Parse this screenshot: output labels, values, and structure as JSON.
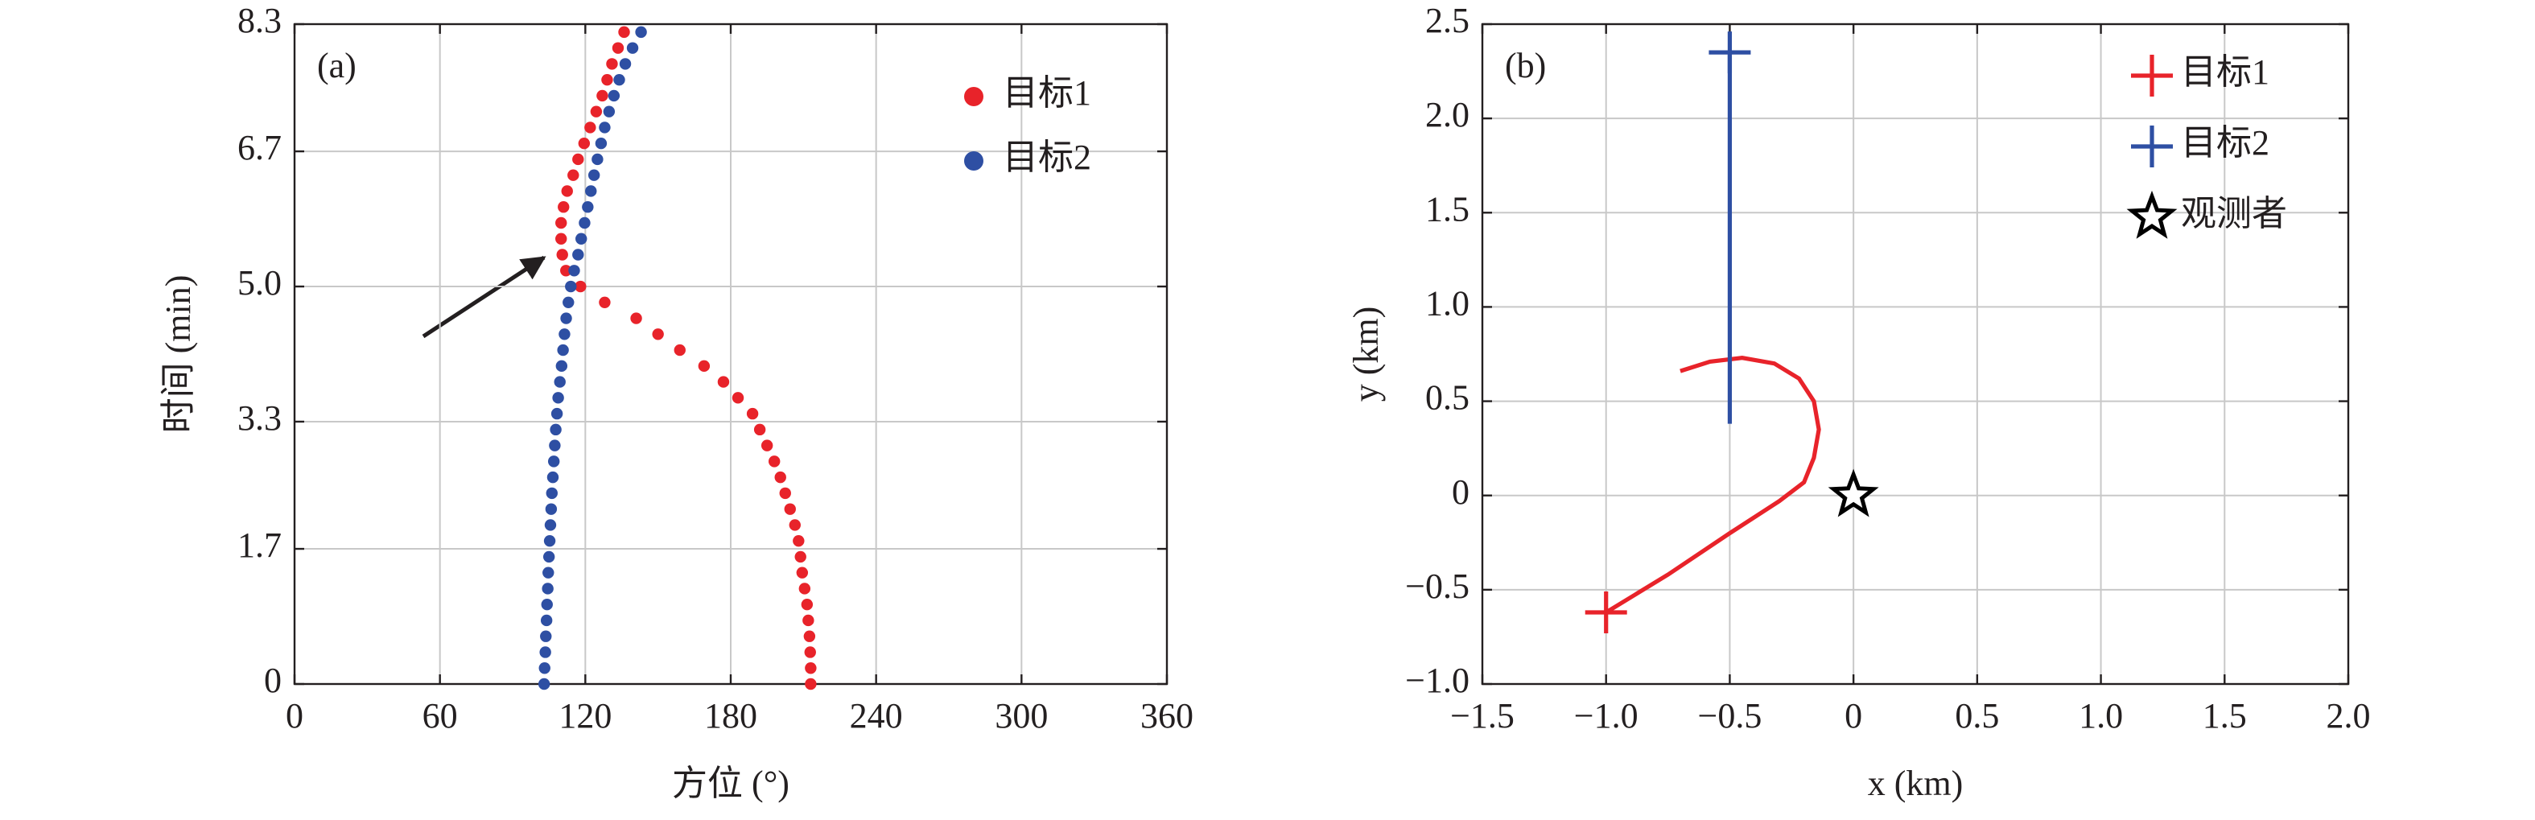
{
  "chart_data": [
    {
      "type": "scatter",
      "panel_label": "(a)",
      "xlabel": "方位 (°)",
      "ylabel": "时间 (min)",
      "xlim": [
        0,
        360
      ],
      "xticks": [
        0,
        60,
        120,
        180,
        240,
        300,
        360
      ],
      "ylim": [
        0,
        8.3
      ],
      "yticks": [
        0,
        1.7,
        3.3,
        {
          "value": 5,
          "label": "5.0"
        },
        6.7,
        8.3
      ],
      "grid": true,
      "legend": "upper right",
      "series": [
        {
          "name": "目标1",
          "color": "#e8232a",
          "x": [
            213,
            213,
            212.8,
            212.5,
            212,
            211.5,
            210.5,
            209.5,
            208.8,
            208,
            206.5,
            204.5,
            202.5,
            200.5,
            198,
            195,
            192,
            189,
            183,
            177,
            169,
            159,
            150,
            141,
            128,
            118,
            112,
            110.5,
            110,
            110,
            111,
            112.5,
            115,
            117,
            119.5,
            122,
            124.5,
            127,
            129,
            131,
            133.5,
            136
          ],
          "values": [
            0,
            0.2,
            0.4,
            0.6,
            0.8,
            1.0,
            1.2,
            1.4,
            1.6,
            1.8,
            2.0,
            2.2,
            2.4,
            2.6,
            2.8,
            3.0,
            3.2,
            3.4,
            3.6,
            3.8,
            4.0,
            4.2,
            4.4,
            4.6,
            4.8,
            5.0,
            5.2,
            5.4,
            5.6,
            5.8,
            6.0,
            6.2,
            6.4,
            6.6,
            6.8,
            7.0,
            7.2,
            7.4,
            7.6,
            7.8,
            8.0,
            8.2
          ]
        },
        {
          "name": "目标2",
          "color": "#2e4fa3",
          "x": [
            103,
            103.2,
            103.5,
            103.7,
            104,
            104.2,
            104.5,
            104.7,
            105,
            105.3,
            105.6,
            105.9,
            106.2,
            106.6,
            107,
            107.4,
            107.8,
            108.3,
            108.8,
            109.5,
            110.2,
            110.8,
            111.4,
            112.1,
            113,
            114,
            115.4,
            117,
            118.3,
            119.7,
            121,
            122.3,
            123.6,
            125,
            126.5,
            128,
            129.8,
            131.8,
            134,
            136.5,
            139.5,
            143
          ],
          "values": [
            0,
            0.2,
            0.4,
            0.6,
            0.8,
            1.0,
            1.2,
            1.4,
            1.6,
            1.8,
            2.0,
            2.2,
            2.4,
            2.6,
            2.8,
            3.0,
            3.2,
            3.4,
            3.6,
            3.8,
            4.0,
            4.2,
            4.4,
            4.6,
            4.8,
            5.0,
            5.2,
            5.4,
            5.6,
            5.8,
            6.0,
            6.2,
            6.4,
            6.6,
            6.8,
            7.0,
            7.2,
            7.4,
            7.6,
            7.8,
            8.0,
            8.2
          ]
        }
      ]
    },
    {
      "type": "line",
      "panel_label": "(b)",
      "xlabel": "x (km)",
      "ylabel": "y (km)",
      "xlim": [
        -1.5,
        2.0
      ],
      "xticks": [
        {
          "value": -1.5,
          "label": "−1.5"
        },
        {
          "value": -1,
          "label": "−1.0"
        },
        {
          "value": -0.5,
          "label": "−0.5"
        },
        0,
        0.5,
        {
          "value": 1,
          "label": "1.0"
        },
        1.5,
        {
          "value": 2,
          "label": "2.0"
        }
      ],
      "ylim": [
        -1,
        2.5
      ],
      "yticks": [
        {
          "value": -1,
          "label": "−1.0"
        },
        {
          "value": -0.5,
          "label": "−0.5"
        },
        0,
        0.5,
        {
          "value": 1,
          "label": "1.0"
        },
        1.5,
        {
          "value": 2,
          "label": "2.0"
        },
        2.5
      ],
      "grid": true,
      "legend": "upper right",
      "series": [
        {
          "name": "目标1",
          "color": "#e8232a",
          "marker": "plus",
          "x": [
            -1.0,
            -0.75,
            -0.5,
            -0.3,
            -0.2,
            -0.16,
            -0.14,
            -0.16,
            -0.22,
            -0.32,
            -0.45,
            -0.58,
            -0.7
          ],
          "values": [
            -0.62,
            -0.42,
            -0.2,
            -0.03,
            0.07,
            0.2,
            0.35,
            0.5,
            0.62,
            0.7,
            0.73,
            0.71,
            0.66
          ]
        },
        {
          "name": "目标2",
          "color": "#2e4fa3",
          "marker": "plus",
          "x": [
            -0.5,
            -0.5
          ],
          "values": [
            2.35,
            0.38
          ]
        },
        {
          "name": "观测者",
          "color": "#000000",
          "marker": "star",
          "x": [
            0
          ],
          "values": [
            0
          ]
        }
      ]
    }
  ]
}
